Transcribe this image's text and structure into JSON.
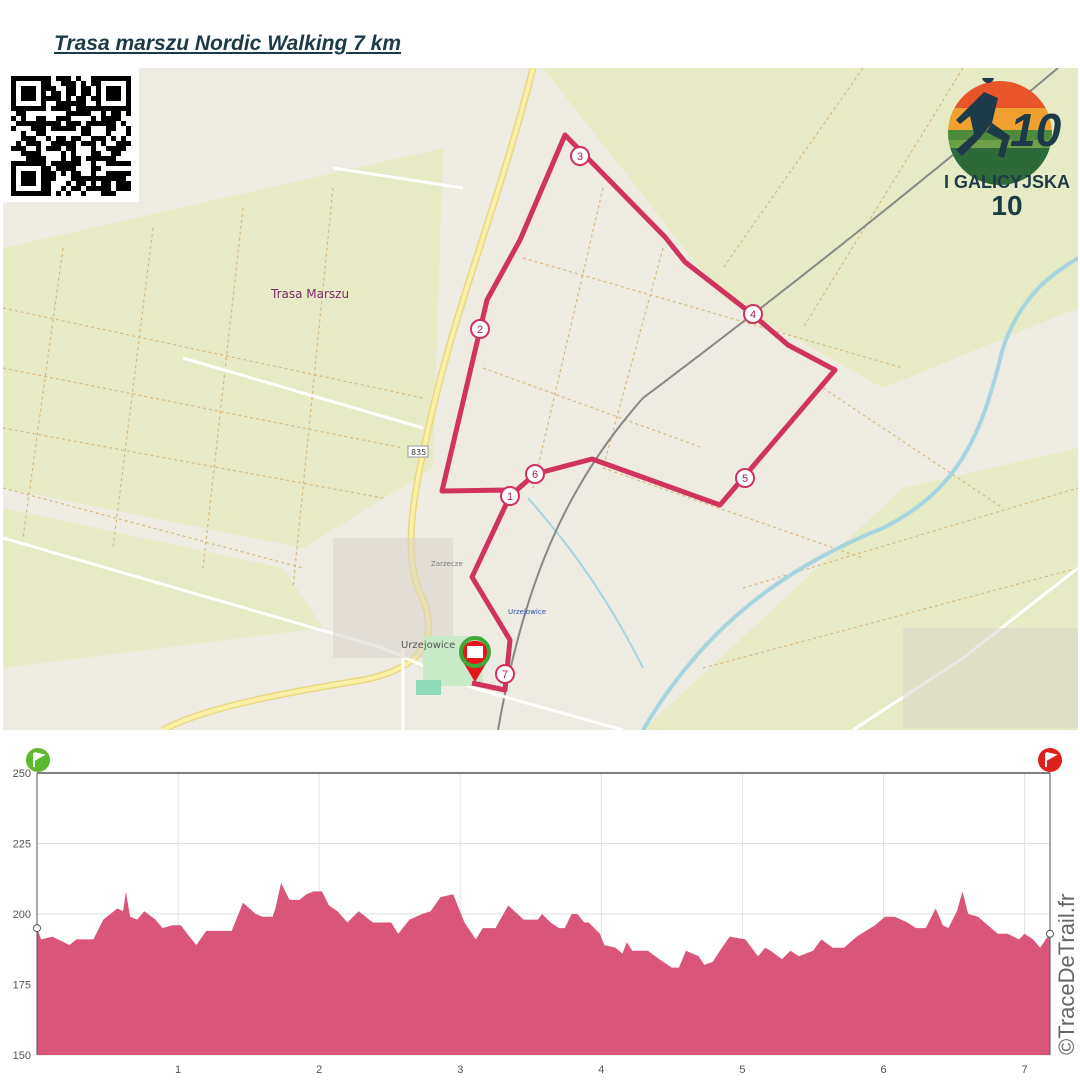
{
  "title": "Trasa marszu Nordic Walking 7 km",
  "map": {
    "route_label": "Trasa Marszu",
    "road_number": "835",
    "town_label": "Urzejowice",
    "station_label": "Urzejowice",
    "village_part_label": "Zarzecze",
    "route_color": "#d0335e",
    "checkpoints": [
      "1",
      "2",
      "3",
      "4",
      "5",
      "6",
      "7"
    ],
    "start_marker": "start-finish-flag-icon"
  },
  "logo": {
    "number": "10",
    "line1": "I GALICYJSKA",
    "line2": "10"
  },
  "qr_code": "qr-code",
  "chart_data": {
    "type": "area",
    "title": "",
    "xlabel": "",
    "ylabel": "",
    "xlim": [
      0,
      7.18
    ],
    "ylim": [
      150,
      250
    ],
    "x_ticks": [
      "1",
      "2",
      "3",
      "4",
      "5",
      "6",
      "7"
    ],
    "y_ticks": [
      "150",
      "175",
      "200",
      "225",
      "250"
    ],
    "grid": true,
    "fill_color": "#d9567a",
    "watermark": "©TraceDeTrail.fr",
    "start_flag_color": "#5cb82e",
    "end_flag_color": "#e0201c",
    "x": [
      0,
      0.03,
      0.11,
      0.23,
      0.28,
      0.4,
      0.47,
      0.57,
      0.61,
      0.63,
      0.66,
      0.71,
      0.76,
      0.84,
      0.89,
      0.96,
      1.02,
      1.08,
      1.13,
      1.2,
      1.38,
      1.46,
      1.55,
      1.6,
      1.67,
      1.69,
      1.73,
      1.79,
      1.86,
      1.91,
      1.96,
      2.02,
      2.07,
      2.13,
      2.2,
      2.28,
      2.38,
      2.51,
      2.56,
      2.64,
      2.73,
      2.79,
      2.86,
      2.95,
      3.03,
      3.11,
      3.16,
      3.25,
      3.34,
      3.45,
      3.55,
      3.58,
      3.64,
      3.7,
      3.74,
      3.79,
      3.83,
      3.88,
      3.91,
      3.99,
      4.02,
      4.1,
      4.15,
      4.18,
      4.22,
      4.33,
      4.41,
      4.5,
      4.55,
      4.6,
      4.69,
      4.73,
      4.79,
      4.84,
      4.91,
      5.02,
      5.11,
      5.16,
      5.2,
      5.28,
      5.34,
      5.4,
      5.5,
      5.56,
      5.64,
      5.72,
      5.81,
      5.94,
      6.01,
      6.08,
      6.17,
      6.23,
      6.3,
      6.37,
      6.42,
      6.46,
      6.52,
      6.56,
      6.6,
      6.67,
      6.74,
      6.81,
      6.88,
      6.96,
      7.0,
      7.06,
      7.11,
      7.15,
      7.18
    ],
    "y": [
      195,
      191,
      192,
      189,
      191,
      191,
      198,
      202,
      201,
      208,
      199,
      198,
      201,
      198,
      195,
      196,
      196,
      192,
      189,
      194,
      194,
      204,
      200,
      199,
      199,
      202,
      211,
      205,
      205,
      207,
      208,
      208,
      203,
      201,
      197,
      201,
      197,
      197,
      193,
      198,
      200,
      201,
      206,
      207,
      197,
      191,
      195,
      195,
      203,
      198,
      198,
      200,
      197,
      195,
      195,
      200,
      200,
      197,
      197,
      193,
      189,
      188,
      186,
      190,
      187,
      187,
      184,
      181,
      181,
      187,
      185,
      182,
      183,
      187,
      192,
      191,
      185,
      188,
      187,
      184,
      187,
      185,
      187,
      191,
      188,
      188,
      192,
      196,
      199,
      199,
      197,
      195,
      195,
      202,
      196,
      195,
      201,
      208,
      200,
      199,
      196,
      193,
      193,
      191,
      193,
      191,
      188,
      191,
      193
    ]
  }
}
